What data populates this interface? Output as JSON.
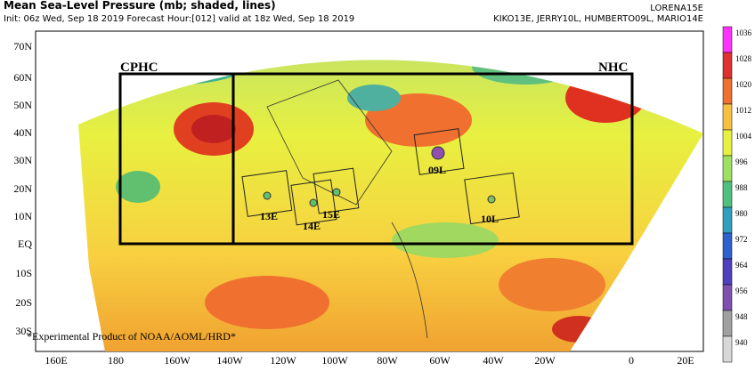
{
  "header": {
    "title": "Mean Sea-Level Pressure (mb; shaded, lines)",
    "subtitle": "Init: 06z Wed, Sep 18 2019  Forecast Hour:[012]  valid at 18z Wed, Sep 18 2019",
    "storms_line1": "LORENA15E",
    "storms_line2": "KIKO13E, JERRY10L, HUMBERTO09L, MARIO14E"
  },
  "lon_labels": [
    "160E",
    "180",
    "160W",
    "140W",
    "120W",
    "100W",
    "80W",
    "60W",
    "40W",
    "20W",
    "0",
    "20E"
  ],
  "lat_labels": [
    "70N",
    "60N",
    "50N",
    "40N",
    "30N",
    "20N",
    "10N",
    "EQ",
    "10S",
    "20S",
    "30S"
  ],
  "regions": [
    "CPHC",
    "NHC"
  ],
  "storm_labels": [
    "13E",
    "14E",
    "15E",
    "09L",
    "10L"
  ],
  "footnote": "*Experimental Product of NOAA/AOML/HRD*",
  "colorbar": {
    "labels": [
      "1036",
      "1028",
      "1020",
      "1012",
      "1004",
      "996",
      "988",
      "980",
      "972",
      "964",
      "956",
      "948",
      "940"
    ],
    "colors": [
      "#ff33ff",
      "#e03030",
      "#f07030",
      "#f8c040",
      "#e8f040",
      "#a0e060",
      "#50c080",
      "#30a0c0",
      "#3060d0",
      "#5040c0",
      "#8050b0",
      "#a0a0a0",
      "#d8d8d8"
    ]
  }
}
